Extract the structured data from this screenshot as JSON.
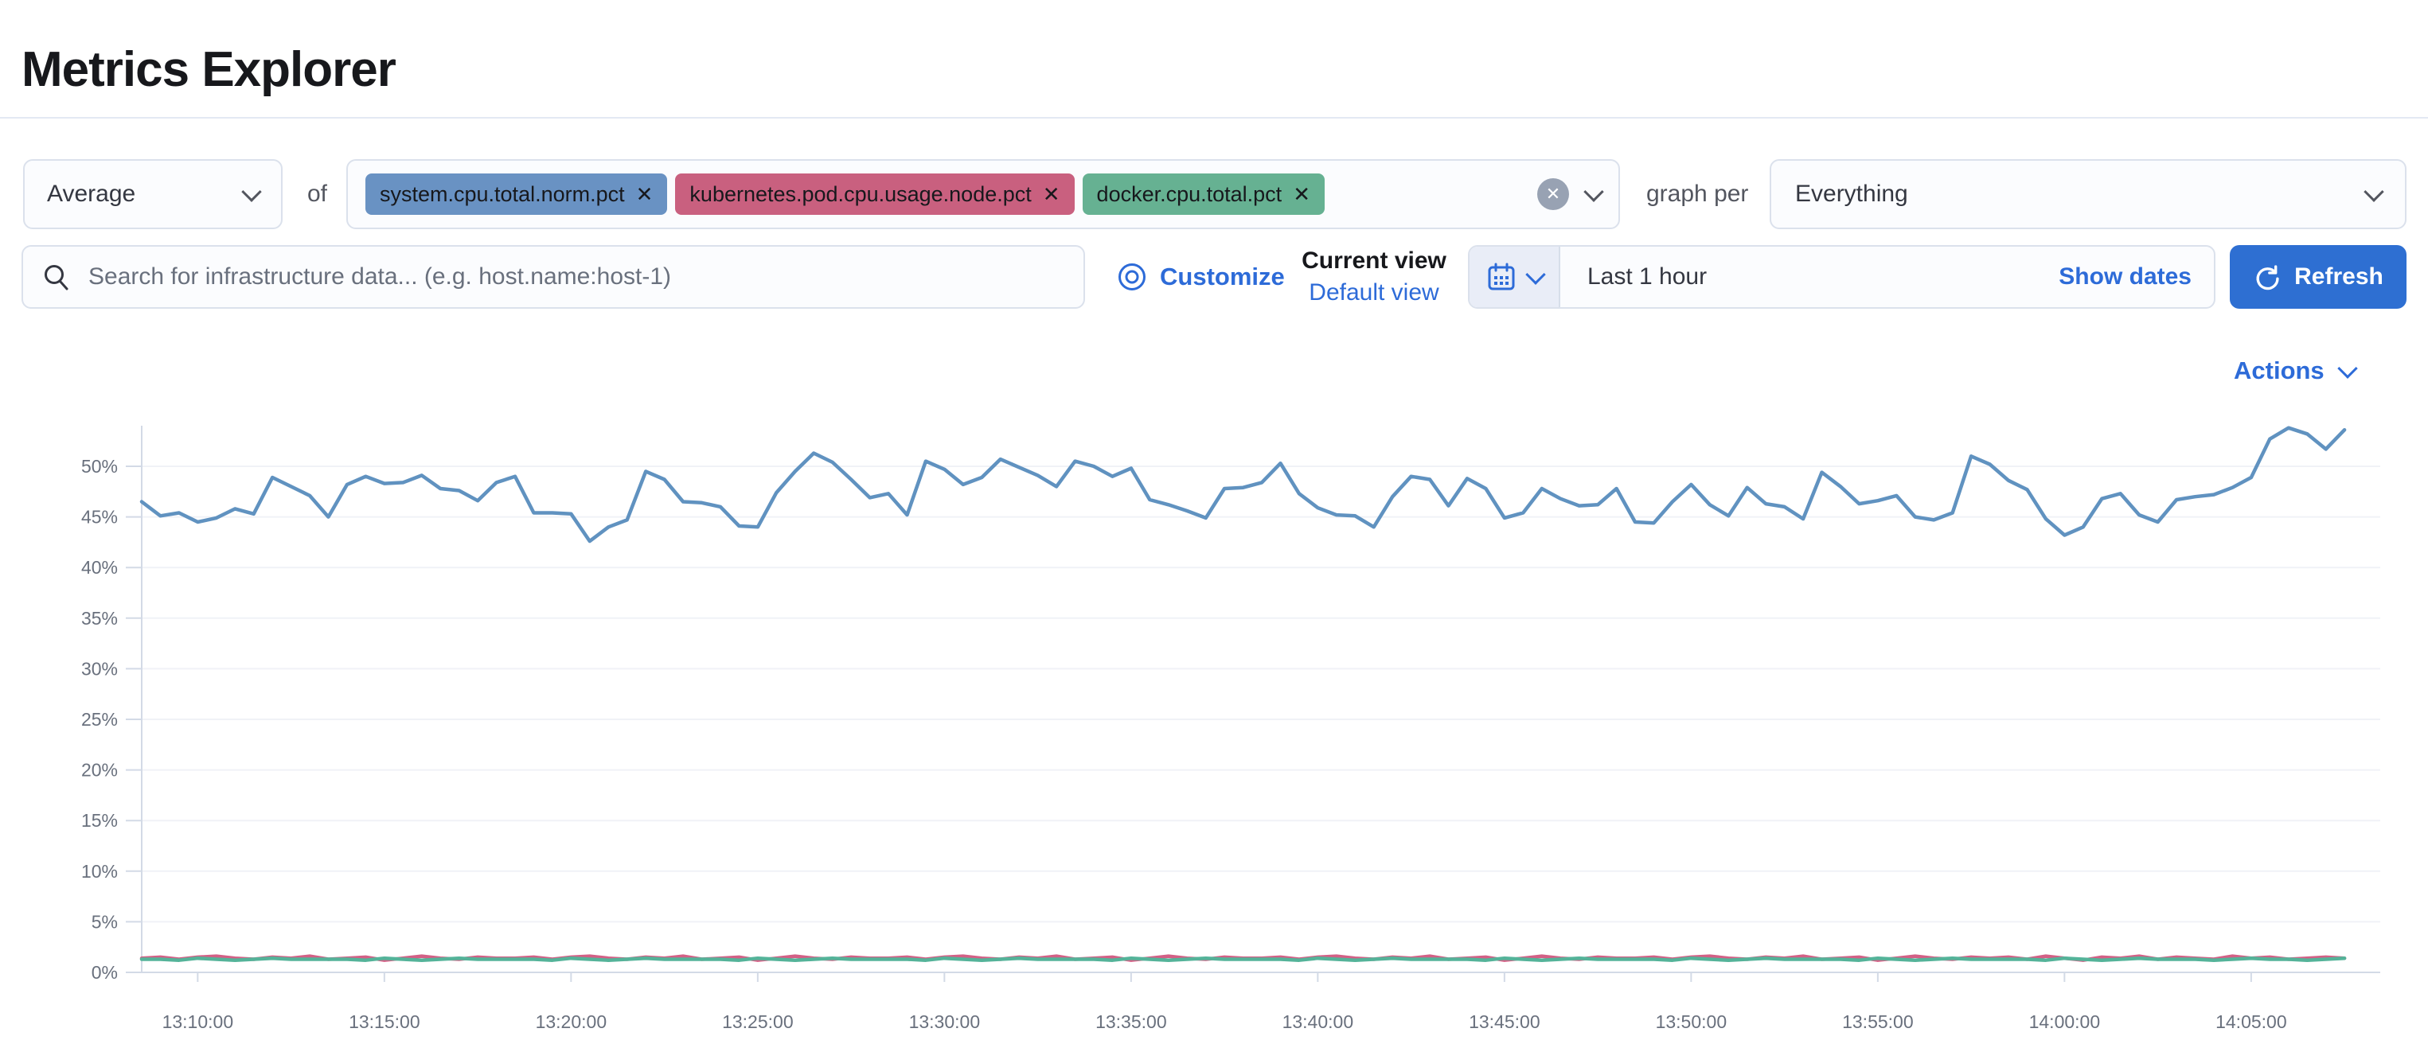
{
  "header": {
    "title": "Metrics Explorer"
  },
  "toolbar": {
    "aggregation": {
      "value": "Average"
    },
    "of_label": "of",
    "metrics": [
      {
        "label": "system.cpu.total.norm.pct",
        "color": "#6992c3"
      },
      {
        "label": "kubernetes.pod.cpu.usage.node.pct",
        "color": "#c9607f"
      },
      {
        "label": "docker.cpu.total.pct",
        "color": "#66b192"
      }
    ],
    "graph_per_label": "graph per",
    "group_by": {
      "value": "Everything"
    }
  },
  "search": {
    "placeholder": "Search for infrastructure data... (e.g. host.name:host-1)"
  },
  "view_controls": {
    "customize_label": "Customize",
    "current_view_label": "Current view",
    "default_view_label": "Default view"
  },
  "datepicker": {
    "range_label": "Last 1 hour",
    "show_dates_label": "Show dates",
    "refresh_label": "Refresh"
  },
  "actions": {
    "label": "Actions"
  },
  "icons": {
    "remove_glyph": "✕",
    "clear_glyph": "✕"
  },
  "colors": {
    "link_blue": "#2d6bd8",
    "button_blue": "#2e6fd2",
    "axis_text": "#69707d",
    "axis_line": "#d3dae6",
    "gridline": "#f0f2f7"
  },
  "chart_data": {
    "type": "line",
    "title": "",
    "xlabel": "",
    "ylabel": "",
    "y_unit": "%",
    "ylim": [
      0,
      55
    ],
    "y_ticks": [
      0,
      5,
      10,
      15,
      20,
      25,
      30,
      35,
      40,
      45,
      50
    ],
    "grid": "horizontal",
    "legend": "none",
    "x_start": "13:08:30",
    "x_interval_seconds": 30,
    "x_tick_labels": [
      "13:10:00",
      "13:15:00",
      "13:20:00",
      "13:25:00",
      "13:30:00",
      "13:35:00",
      "13:40:00",
      "13:45:00",
      "13:50:00",
      "13:55:00",
      "14:00:00",
      "14:05:00"
    ],
    "series": [
      {
        "name": "kubernetes.pod.cpu.usage.node.pct",
        "color": "#D36086",
        "values": [
          1.4,
          1.5,
          1.3,
          1.5,
          1.6,
          1.4,
          1.3,
          1.5,
          1.4,
          1.6,
          1.3,
          1.4,
          1.5,
          1.2,
          1.4,
          1.6,
          1.4,
          1.3,
          1.5,
          1.4,
          1.4,
          1.5,
          1.3,
          1.5,
          1.6,
          1.4,
          1.3,
          1.5,
          1.4,
          1.6,
          1.3,
          1.4,
          1.5,
          1.2,
          1.4,
          1.6,
          1.4,
          1.3,
          1.5,
          1.4,
          1.4,
          1.5,
          1.3,
          1.5,
          1.6,
          1.4,
          1.3,
          1.5,
          1.4,
          1.6,
          1.3,
          1.4,
          1.5,
          1.2,
          1.4,
          1.6,
          1.4,
          1.3,
          1.5,
          1.4,
          1.4,
          1.5,
          1.3,
          1.5,
          1.6,
          1.4,
          1.3,
          1.5,
          1.4,
          1.6,
          1.3,
          1.4,
          1.5,
          1.2,
          1.4,
          1.6,
          1.4,
          1.3,
          1.5,
          1.4,
          1.4,
          1.5,
          1.3,
          1.5,
          1.6,
          1.4,
          1.3,
          1.5,
          1.4,
          1.6,
          1.3,
          1.4,
          1.5,
          1.2,
          1.4,
          1.6,
          1.4,
          1.3,
          1.5,
          1.4,
          1.5,
          1.3,
          1.6,
          1.4,
          1.2,
          1.5,
          1.4,
          1.6,
          1.3,
          1.5,
          1.4,
          1.3,
          1.6,
          1.4,
          1.5,
          1.3,
          1.4,
          1.5,
          1.4
        ]
      },
      {
        "name": "docker.cpu.total.pct",
        "color": "#54B399",
        "values": [
          1.3,
          1.3,
          1.2,
          1.4,
          1.3,
          1.2,
          1.3,
          1.4,
          1.3,
          1.3,
          1.3,
          1.3,
          1.2,
          1.4,
          1.3,
          1.2,
          1.3,
          1.4,
          1.3,
          1.3,
          1.3,
          1.3,
          1.2,
          1.4,
          1.3,
          1.2,
          1.3,
          1.4,
          1.3,
          1.3,
          1.3,
          1.3,
          1.2,
          1.4,
          1.3,
          1.2,
          1.3,
          1.4,
          1.3,
          1.3,
          1.3,
          1.3,
          1.2,
          1.4,
          1.3,
          1.2,
          1.3,
          1.4,
          1.3,
          1.3,
          1.3,
          1.3,
          1.2,
          1.4,
          1.3,
          1.2,
          1.3,
          1.4,
          1.3,
          1.3,
          1.3,
          1.3,
          1.2,
          1.4,
          1.3,
          1.2,
          1.3,
          1.4,
          1.3,
          1.3,
          1.3,
          1.3,
          1.2,
          1.4,
          1.3,
          1.2,
          1.3,
          1.4,
          1.3,
          1.3,
          1.3,
          1.3,
          1.2,
          1.4,
          1.3,
          1.2,
          1.3,
          1.4,
          1.3,
          1.3,
          1.3,
          1.3,
          1.2,
          1.4,
          1.3,
          1.2,
          1.3,
          1.4,
          1.3,
          1.3,
          1.3,
          1.3,
          1.2,
          1.4,
          1.3,
          1.2,
          1.3,
          1.4,
          1.3,
          1.3,
          1.3,
          1.2,
          1.3,
          1.4,
          1.3,
          1.3,
          1.2,
          1.3,
          1.4
        ]
      },
      {
        "name": "system.cpu.total.norm.pct",
        "color": "#6092C0",
        "values": [
          46.5,
          45.1,
          45.4,
          44.5,
          44.9,
          45.8,
          45.3,
          48.9,
          48.0,
          47.1,
          45.0,
          48.2,
          49.0,
          48.3,
          48.4,
          49.1,
          47.8,
          47.6,
          46.6,
          48.4,
          49.0,
          45.4,
          45.4,
          45.3,
          42.6,
          44.0,
          44.7,
          49.5,
          48.7,
          46.5,
          46.4,
          46.0,
          44.1,
          44.0,
          47.4,
          49.5,
          51.3,
          50.4,
          48.7,
          46.9,
          47.3,
          45.2,
          50.5,
          49.7,
          48.2,
          48.9,
          50.7,
          49.9,
          49.1,
          48.0,
          50.5,
          50.0,
          49.0,
          49.8,
          46.7,
          46.2,
          45.6,
          44.9,
          47.8,
          47.9,
          48.4,
          50.3,
          47.3,
          45.9,
          45.2,
          45.1,
          44.0,
          47.0,
          49.0,
          48.7,
          46.1,
          48.8,
          47.8,
          44.9,
          45.4,
          47.8,
          46.8,
          46.1,
          46.2,
          47.8,
          44.5,
          44.4,
          46.5,
          48.2,
          46.2,
          45.1,
          47.9,
          46.3,
          46.0,
          44.8,
          49.4,
          48.0,
          46.3,
          46.6,
          47.1,
          45.0,
          44.7,
          45.4,
          51.0,
          50.2,
          48.6,
          47.7,
          44.8,
          43.2,
          44.0,
          46.8,
          47.3,
          45.2,
          44.5,
          46.7,
          47.0,
          47.2,
          47.9,
          48.9,
          52.7,
          53.8,
          53.2,
          51.7,
          53.6
        ]
      }
    ]
  }
}
